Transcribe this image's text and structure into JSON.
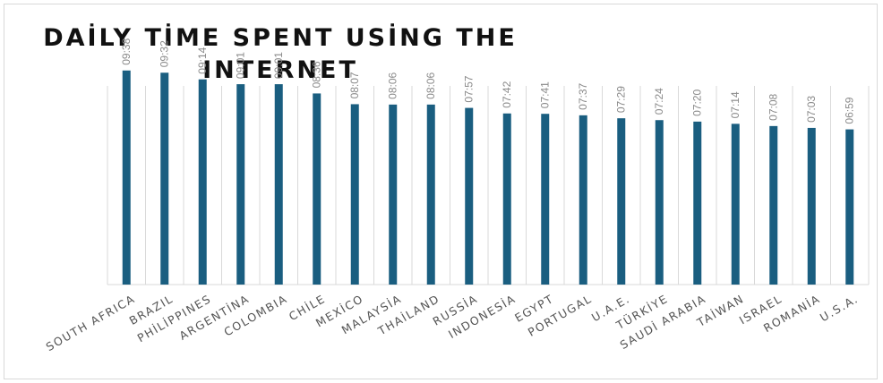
{
  "chart_data": {
    "type": "bar",
    "title": "DAİLY TİME SPENT USİNG THE INTERNET",
    "categories": [
      "SOUTH AFRICA",
      "BRAZIL",
      "PHİLİPPINES",
      "ARGENTİNA",
      "COLOMBIA",
      "CHİLE",
      "MEXİCO",
      "MALAYSİA",
      "THAİLAND",
      "RUSSİA",
      "INDONESİA",
      "EGYPT",
      "PORTUGAL",
      "U.A.E.",
      "TÜRKİYE",
      "SAUDİ ARABIA",
      "TAİWAN",
      "ISRAEL",
      "ROMANİA",
      "U.S.A."
    ],
    "value_labels": [
      "09:38",
      "09:32",
      "09:14",
      "09:01",
      "09:01",
      "08:36",
      "08:07",
      "08:06",
      "08:06",
      "07:57",
      "07:42",
      "07:41",
      "07:37",
      "07:29",
      "07:24",
      "07:20",
      "07:14",
      "07:08",
      "07:03",
      "06:59"
    ],
    "values": [
      578,
      572,
      554,
      541,
      541,
      516,
      487,
      486,
      486,
      477,
      462,
      461,
      457,
      449,
      444,
      440,
      434,
      428,
      423,
      419
    ],
    "value_unit": "minutes",
    "ylim": [
      0,
      720
    ],
    "xlabel": "",
    "ylabel": "",
    "grid": true,
    "bar_color": "#1a5e80",
    "grid_color": "#d9d9d9"
  }
}
